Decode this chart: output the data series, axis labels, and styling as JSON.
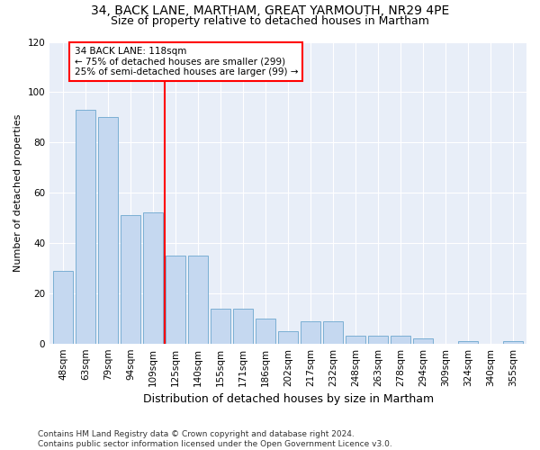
{
  "title1": "34, BACK LANE, MARTHAM, GREAT YARMOUTH, NR29 4PE",
  "title2": "Size of property relative to detached houses in Martham",
  "xlabel": "Distribution of detached houses by size in Martham",
  "ylabel": "Number of detached properties",
  "categories": [
    "48sqm",
    "63sqm",
    "79sqm",
    "94sqm",
    "109sqm",
    "125sqm",
    "140sqm",
    "155sqm",
    "171sqm",
    "186sqm",
    "202sqm",
    "217sqm",
    "232sqm",
    "248sqm",
    "263sqm",
    "278sqm",
    "294sqm",
    "309sqm",
    "324sqm",
    "340sqm",
    "355sqm"
  ],
  "values": [
    29,
    93,
    90,
    51,
    52,
    35,
    35,
    14,
    14,
    10,
    5,
    9,
    9,
    3,
    3,
    3,
    2,
    0,
    1,
    0,
    1
  ],
  "bar_color": "#c5d8f0",
  "bar_edge_color": "#7bafd4",
  "vline_index": 4,
  "vline_color": "red",
  "annotation_text": "34 BACK LANE: 118sqm\n← 75% of detached houses are smaller (299)\n25% of semi-detached houses are larger (99) →",
  "annotation_box_color": "white",
  "annotation_box_edge_color": "red",
  "ylim": [
    0,
    120
  ],
  "yticks": [
    0,
    20,
    40,
    60,
    80,
    100,
    120
  ],
  "footer": "Contains HM Land Registry data © Crown copyright and database right 2024.\nContains public sector information licensed under the Open Government Licence v3.0.",
  "bg_color": "#e8eef8",
  "title1_fontsize": 10,
  "title2_fontsize": 9,
  "ylabel_fontsize": 8,
  "xlabel_fontsize": 9,
  "tick_fontsize": 7.5,
  "footer_fontsize": 6.5
}
